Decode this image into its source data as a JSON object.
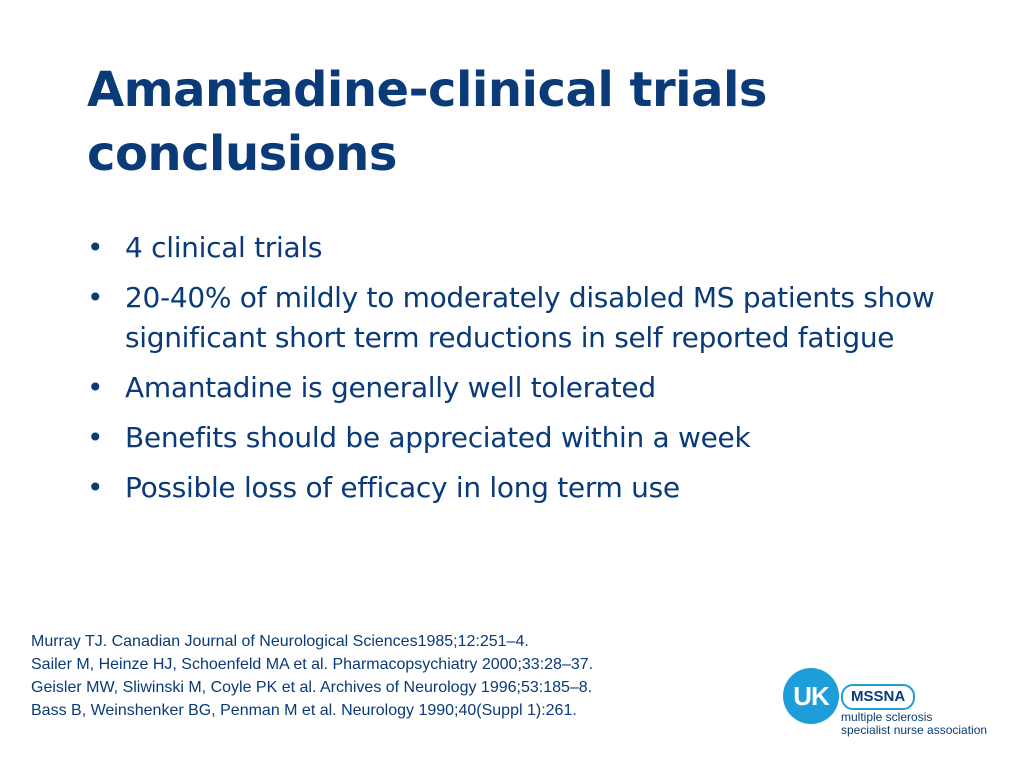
{
  "slide": {
    "title_line1": "Amantadine-clinical trials",
    "title_line2": "conclusions",
    "bullet_symbol": "•",
    "bullets": [
      "4 clinical trials",
      "20-40% of mildly to moderately disabled MS patients show significant short term reductions in self reported fatigue",
      "Amantadine is generally well tolerated",
      "Benefits should be appreciated within a week",
      "Possible loss of efficacy in long term use"
    ],
    "references": [
      "Murray TJ. Canadian Journal of Neurological Sciences1985;12:251–4.",
      "Sailer M, Heinze HJ, Schoenfeld MA et al. Pharmacopsychiatry 2000;33:28–37.",
      "Geisler MW, Sliwinski M, Coyle PK et al. Archives of Neurology 1996;53:185–8.",
      "Bass B, Weinshenker BG, Penman M et al. Neurology 1990;40(Suppl 1):261."
    ]
  },
  "logo": {
    "circle_text": "UK",
    "badge_text": "MSSNA",
    "line1": "multiple sclerosis",
    "line2": "specialist nurse association"
  },
  "colors": {
    "text": "#0a3a78",
    "accent": "#1d9ed9",
    "background": "#ffffff"
  }
}
